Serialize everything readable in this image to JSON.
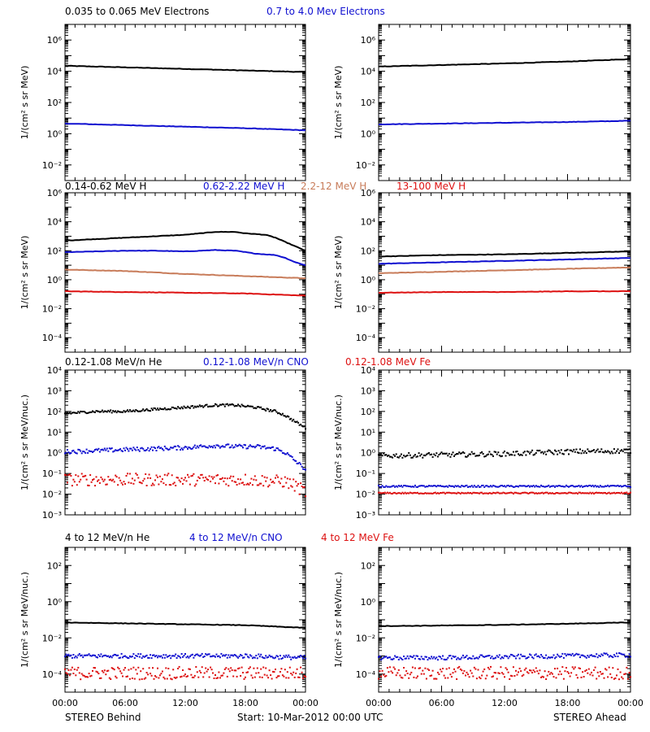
{
  "colors": {
    "black": "#000000",
    "blue": "#1010d0",
    "tan": "#c87c5a",
    "red": "#dd1111"
  },
  "footer": {
    "left": "STEREO Behind",
    "center": "Start: 10-Mar-2012 00:00 UTC",
    "right": "STEREO Ahead"
  },
  "x_tick_labels": [
    "00:00",
    "06:00",
    "12:00",
    "18:00",
    "00:00"
  ],
  "chart_data": [
    {
      "type": "line",
      "row": 1,
      "ylabel": "1/(cm² s sr MeV)",
      "ylim_log10": [
        -3,
        7
      ],
      "y_tick_exponents": [
        -2,
        0,
        2,
        4,
        6
      ],
      "legend": [
        {
          "text": "0.035 to 0.065 MeV Electrons",
          "color": "black"
        },
        {
          "text": "0.7 to 4.0 Mev Electrons",
          "color": "blue"
        }
      ],
      "behind": [
        {
          "color": "black",
          "style": "line",
          "x": [
            0,
            6,
            12,
            18,
            24
          ],
          "log10": [
            4.35,
            4.25,
            4.15,
            4.05,
            3.95
          ]
        },
        {
          "color": "blue",
          "style": "line",
          "x": [
            0,
            6,
            12,
            18,
            24
          ],
          "log10": [
            0.65,
            0.55,
            0.45,
            0.35,
            0.22
          ]
        }
      ],
      "ahead": [
        {
          "color": "black",
          "style": "line",
          "x": [
            0,
            6,
            12,
            18,
            24
          ],
          "log10": [
            4.3,
            4.4,
            4.5,
            4.62,
            4.78
          ]
        },
        {
          "color": "blue",
          "style": "line",
          "x": [
            0,
            6,
            12,
            18,
            24
          ],
          "log10": [
            0.6,
            0.65,
            0.7,
            0.75,
            0.83
          ]
        }
      ]
    },
    {
      "type": "line",
      "row": 2,
      "ylabel": "1/(cm² s sr MeV)",
      "ylim_log10": [
        -5,
        6
      ],
      "y_tick_exponents": [
        -4,
        -2,
        0,
        2,
        4,
        6
      ],
      "legend": [
        {
          "text": "0.14-0.62 MeV H",
          "color": "black"
        },
        {
          "text": "0.62-2.22 MeV H",
          "color": "blue"
        },
        {
          "text": "2.2-12 MeV H",
          "color": "tan"
        },
        {
          "text": "13-100 MeV H",
          "color": "red"
        }
      ],
      "behind": [
        {
          "color": "black",
          "style": "line",
          "x": [
            0,
            3,
            6,
            9,
            12,
            15,
            17,
            18,
            20,
            21,
            22,
            23,
            24
          ],
          "log10": [
            2.7,
            2.8,
            2.9,
            3.0,
            3.1,
            3.3,
            3.3,
            3.2,
            3.1,
            2.9,
            2.6,
            2.3,
            2.0
          ]
        },
        {
          "color": "blue",
          "style": "line",
          "x": [
            0,
            3,
            6,
            9,
            12,
            15,
            17,
            19,
            21,
            22,
            23,
            24
          ],
          "log10": [
            1.9,
            1.95,
            2.0,
            2.0,
            1.95,
            2.05,
            2.0,
            1.8,
            1.7,
            1.5,
            1.2,
            1.0
          ]
        },
        {
          "color": "tan",
          "style": "line",
          "x": [
            0,
            6,
            12,
            18,
            24
          ],
          "log10": [
            0.7,
            0.6,
            0.4,
            0.25,
            0.1
          ]
        },
        {
          "color": "red",
          "style": "line",
          "x": [
            0,
            6,
            12,
            18,
            24
          ],
          "log10": [
            -0.8,
            -0.85,
            -0.9,
            -0.95,
            -1.1
          ]
        }
      ],
      "ahead": [
        {
          "color": "black",
          "style": "line",
          "x": [
            0,
            6,
            12,
            18,
            24
          ],
          "log10": [
            1.6,
            1.7,
            1.75,
            1.85,
            1.95
          ]
        },
        {
          "color": "blue",
          "style": "line",
          "x": [
            0,
            6,
            12,
            18,
            24
          ],
          "log10": [
            1.1,
            1.2,
            1.3,
            1.4,
            1.5
          ]
        },
        {
          "color": "tan",
          "style": "line",
          "x": [
            0,
            6,
            12,
            18,
            24
          ],
          "log10": [
            0.45,
            0.55,
            0.65,
            0.75,
            0.85
          ]
        },
        {
          "color": "red",
          "style": "line",
          "x": [
            0,
            6,
            12,
            18,
            24
          ],
          "log10": [
            -0.9,
            -0.85,
            -0.85,
            -0.8,
            -0.8
          ]
        }
      ]
    },
    {
      "type": "scatter",
      "row": 3,
      "ylabel": "1/(cm² s sr MeV/nuc.)",
      "ylim_log10": [
        -3,
        4
      ],
      "y_tick_exponents": [
        -3,
        -2,
        -1,
        0,
        1,
        2,
        3,
        4
      ],
      "legend": [
        {
          "text": "0.12-1.08 MeV/n He",
          "color": "black"
        },
        {
          "text": "0.12-1.08 MeV/n CNO",
          "color": "blue"
        },
        {
          "text": "0.12-1.08 MeV Fe",
          "color": "red"
        }
      ],
      "behind": [
        {
          "color": "black",
          "style": "dots",
          "x": [
            0,
            3,
            6,
            9,
            12,
            15,
            17,
            19,
            21,
            22,
            23,
            24
          ],
          "log10": [
            1.9,
            2.0,
            2.0,
            2.1,
            2.2,
            2.3,
            2.3,
            2.2,
            2.0,
            1.8,
            1.5,
            1.2
          ],
          "jitter": 0.06
        },
        {
          "color": "blue",
          "style": "dots",
          "x": [
            0,
            3,
            6,
            9,
            12,
            15,
            17,
            19,
            21,
            22,
            23,
            24
          ],
          "log10": [
            0.05,
            0.1,
            0.15,
            0.2,
            0.25,
            0.35,
            0.3,
            0.3,
            0.2,
            0.0,
            -0.4,
            -0.8
          ],
          "jitter": 0.1
        },
        {
          "color": "red",
          "style": "dots",
          "x": [
            0,
            6,
            12,
            18,
            22,
            23,
            24
          ],
          "log10": [
            -1.3,
            -1.3,
            -1.3,
            -1.3,
            -1.4,
            -1.6,
            -1.9
          ],
          "jitter": 0.3
        }
      ],
      "ahead": [
        {
          "color": "black",
          "style": "dots",
          "x": [
            0,
            6,
            12,
            18,
            24
          ],
          "log10": [
            -0.15,
            -0.1,
            -0.05,
            0.05,
            0.1
          ],
          "jitter": 0.12
        },
        {
          "color": "blue",
          "style": "dots",
          "x": [
            0,
            6,
            12,
            18,
            24
          ],
          "log10": [
            -1.62,
            -1.62,
            -1.62,
            -1.62,
            -1.62
          ],
          "jitter": 0.04
        },
        {
          "color": "red",
          "style": "dots",
          "x": [
            0,
            6,
            12,
            18,
            24
          ],
          "log10": [
            -1.95,
            -1.95,
            -1.95,
            -1.95,
            -1.95
          ],
          "jitter": 0.03
        }
      ]
    },
    {
      "type": "scatter",
      "row": 4,
      "ylabel": "1/(cm² s sr MeV/nuc.)",
      "ylim_log10": [
        -5,
        3
      ],
      "y_tick_exponents": [
        -4,
        -2,
        0,
        2
      ],
      "legend": [
        {
          "text": "4 to 12 MeV/n He",
          "color": "black"
        },
        {
          "text": "4 to 12 MeV/n CNO",
          "color": "blue"
        },
        {
          "text": "4 to 12 MeV Fe",
          "color": "red"
        }
      ],
      "behind": [
        {
          "color": "black",
          "style": "line",
          "x": [
            0,
            6,
            12,
            18,
            22,
            24
          ],
          "log10": [
            -1.15,
            -1.2,
            -1.25,
            -1.3,
            -1.4,
            -1.45
          ]
        },
        {
          "color": "blue",
          "style": "dots",
          "x": [
            0,
            6,
            12,
            18,
            24
          ],
          "log10": [
            -3.0,
            -3.0,
            -3.0,
            -3.0,
            -3.1
          ],
          "jitter": 0.12
        },
        {
          "color": "red",
          "style": "dots",
          "x": [
            0,
            6,
            12,
            18,
            24
          ],
          "log10": [
            -3.95,
            -3.95,
            -3.95,
            -3.95,
            -3.95
          ],
          "jitter": 0.35
        }
      ],
      "ahead": [
        {
          "color": "black",
          "style": "line",
          "x": [
            0,
            6,
            12,
            18,
            24
          ],
          "log10": [
            -1.35,
            -1.32,
            -1.28,
            -1.22,
            -1.15
          ]
        },
        {
          "color": "blue",
          "style": "dots",
          "x": [
            0,
            6,
            12,
            18,
            24
          ],
          "log10": [
            -3.1,
            -3.1,
            -3.05,
            -3.0,
            -2.95
          ],
          "jitter": 0.12
        },
        {
          "color": "red",
          "style": "dots",
          "x": [
            0,
            6,
            12,
            18,
            24
          ],
          "log10": [
            -3.95,
            -3.95,
            -3.95,
            -3.95,
            -3.95
          ],
          "jitter": 0.35
        }
      ]
    }
  ]
}
